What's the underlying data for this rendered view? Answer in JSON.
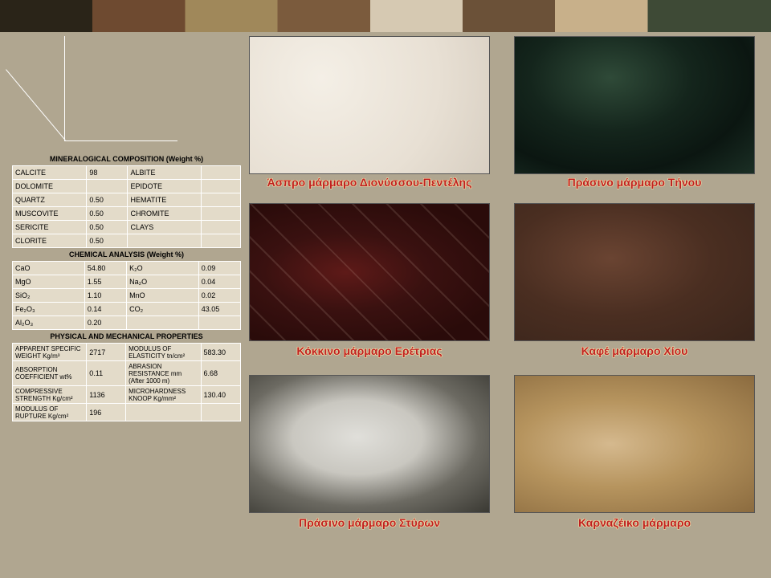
{
  "captions": {
    "white": "Άσπρο μάρμαρο Διονύσσου-Πεντέλης",
    "green": "Πράσινο μάρμαρο Τήνου",
    "red": "Κόκκινο μάρμαρο Ερέτριας",
    "brown": "Καφέ μάρμαρο Χίου",
    "greywhite": "Πράσινο μάρμαρο Στύρων",
    "light": "Καρναζέικο μάρμαρο"
  },
  "headings": {
    "mineral": "MINERALOGICAL COMPOSITION (Weight %)",
    "chemical": "CHEMICAL ANALYSIS (Weight %)",
    "physical": "PHYSICAL AND MECHANICAL PROPERTIES"
  },
  "mineral": {
    "r0a": "CALCITE",
    "r0b": "98",
    "r0c": "ALBITE",
    "r0d": "",
    "r1a": "DOLOMITE",
    "r1b": "",
    "r1c": "EPIDOTE",
    "r1d": "",
    "r2a": "QUARTZ",
    "r2b": "0.50",
    "r2c": "HEMATITE",
    "r2d": "",
    "r3a": "MUSCOVITE",
    "r3b": "0.50",
    "r3c": "CHROMITE",
    "r3d": "",
    "r4a": "SERICITE",
    "r4b": "0.50",
    "r4c": "CLAYS",
    "r4d": "",
    "r5a": "CLORITE",
    "r5b": "0.50",
    "r5c": "",
    "r5d": ""
  },
  "chemical": {
    "r0a": "CaO",
    "r0b": "54.80",
    "r0c": "K₂O",
    "r0d": "0.09",
    "r1a": "MgO",
    "r1b": "1.55",
    "r1c": "Na₂O",
    "r1d": "0.04",
    "r2a": "SiO₂",
    "r2b": "1.10",
    "r2c": "MnO",
    "r2d": "0.02",
    "r3a": "Fe₂O₃",
    "r3b": "0.14",
    "r3c": "CO₂",
    "r3d": "43.05",
    "r4a": "Al₂O₃",
    "r4b": "0.20",
    "r4c": "",
    "r4d": ""
  },
  "physical": {
    "r0a": "APPARENT SPECIFIC WEIGHT Kg/m³",
    "r0b": "2717",
    "r0c": "MODULUS OF ELASTICITY tn/cm²",
    "r0d": "583.30",
    "r1a": "ABSORPTION COEFFICIENT wt%",
    "r1b": "0.11",
    "r1c": "ABRASION RESISTANCE mm (After 1000 m)",
    "r1d": "6.68",
    "r2a": "COMPRESSIVE STRENGTH Kg/cm²",
    "r2b": "1136",
    "r2c": "MICROHARDNESS KNOOP Kg/mm²",
    "r2d": "130.40",
    "r3a": "MODULUS OF RUPTURE Kg/cm²",
    "r3b": "196",
    "r3c": "",
    "r3d": ""
  },
  "colors": {
    "accent_text": "#c02020",
    "bg": "#b0a690",
    "cell": "#e3dbc9"
  }
}
